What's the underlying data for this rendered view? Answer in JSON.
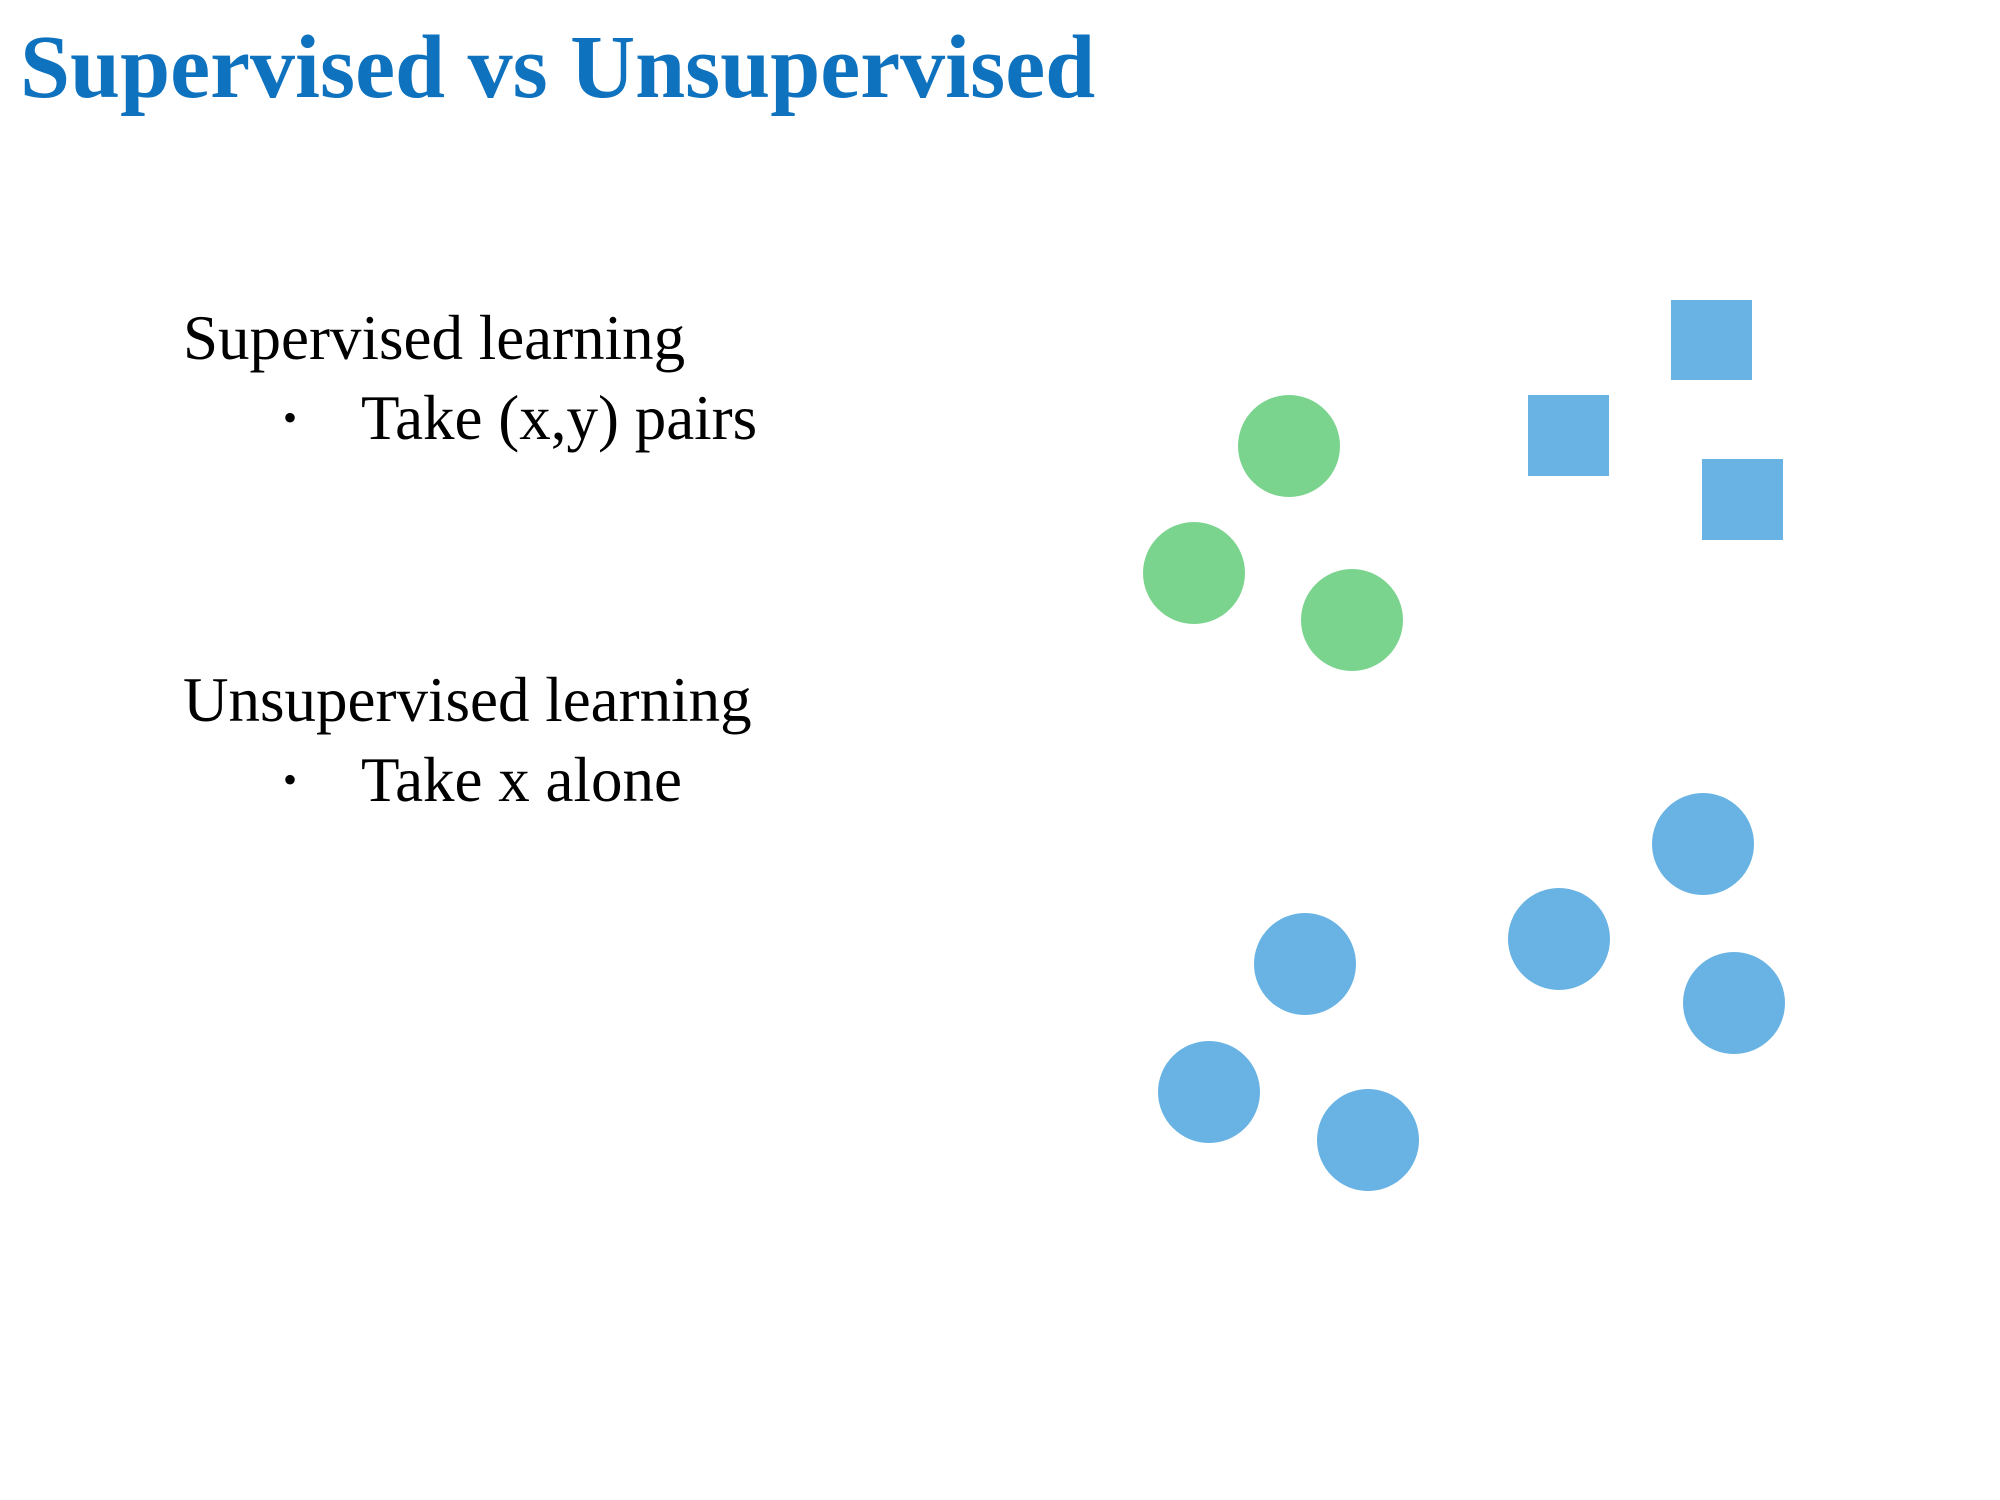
{
  "slide": {
    "title": "Supervised vs Unsupervised",
    "sections": [
      {
        "heading": "Supervised learning",
        "bullet": "Take (x,y) pairs"
      },
      {
        "heading": "Unsupervised learning",
        "bullet": "Take x alone"
      }
    ]
  },
  "colors": {
    "title": "#0e72bf",
    "text": "#000000",
    "green_circle": "#7bd48e",
    "blue_marker": "#69b3e4"
  },
  "diagram": {
    "supervised_example": {
      "class_a_shape": "circle",
      "class_a_color": "green",
      "class_a_count": 3,
      "class_b_shape": "square",
      "class_b_color": "blue",
      "class_b_count": 3
    },
    "unsupervised_example": {
      "shape": "circle",
      "color": "blue",
      "count": 6
    }
  }
}
